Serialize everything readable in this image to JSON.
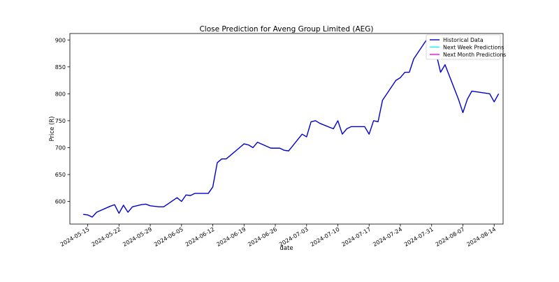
{
  "chart_data": {
    "type": "line",
    "title": "Close Prediction for Aveng Group Limited (AEG)",
    "xlabel": "date",
    "ylabel": "Price (R)",
    "x_range": [
      "2024-05-11",
      "2024-08-16"
    ],
    "ylim": [
      558,
      912
    ],
    "x_ticks": [
      "2024-05-15",
      "2024-05-22",
      "2024-05-29",
      "2024-06-05",
      "2024-06-12",
      "2024-06-19",
      "2024-06-26",
      "2024-07-03",
      "2024-07-10",
      "2024-07-17",
      "2024-07-24",
      "2024-07-31",
      "2024-08-07",
      "2024-08-14"
    ],
    "y_ticks": [
      600,
      650,
      700,
      750,
      800,
      850,
      900
    ],
    "grid": false,
    "legend_position": "top-right",
    "legend": [
      {
        "label": "Historical Data",
        "color": "#0000cd"
      },
      {
        "label": "Next Week Predictions",
        "color": "#00ffff"
      },
      {
        "label": "Next Month Predictions",
        "color": "#ff00ff"
      }
    ],
    "series": [
      {
        "name": "Historical Data",
        "color": "#0000cd",
        "points": [
          {
            "x": "2024-05-14",
            "y": 576
          },
          {
            "x": "2024-05-15",
            "y": 575
          },
          {
            "x": "2024-05-16",
            "y": 571
          },
          {
            "x": "2024-05-17",
            "y": 580
          },
          {
            "x": "2024-05-20",
            "y": 591
          },
          {
            "x": "2024-05-21",
            "y": 594
          },
          {
            "x": "2024-05-22",
            "y": 578
          },
          {
            "x": "2024-05-23",
            "y": 593
          },
          {
            "x": "2024-05-24",
            "y": 580
          },
          {
            "x": "2024-05-25",
            "y": 590
          },
          {
            "x": "2024-05-27",
            "y": 594
          },
          {
            "x": "2024-05-28",
            "y": 595
          },
          {
            "x": "2024-05-29",
            "y": 592
          },
          {
            "x": "2024-05-31",
            "y": 590
          },
          {
            "x": "2024-06-01",
            "y": 590
          },
          {
            "x": "2024-06-04",
            "y": 607
          },
          {
            "x": "2024-06-05",
            "y": 600
          },
          {
            "x": "2024-06-06",
            "y": 612
          },
          {
            "x": "2024-06-07",
            "y": 611
          },
          {
            "x": "2024-06-08",
            "y": 615
          },
          {
            "x": "2024-06-10",
            "y": 615
          },
          {
            "x": "2024-06-11",
            "y": 615
          },
          {
            "x": "2024-06-12",
            "y": 627
          },
          {
            "x": "2024-06-13",
            "y": 672
          },
          {
            "x": "2024-06-14",
            "y": 679
          },
          {
            "x": "2024-06-15",
            "y": 679
          },
          {
            "x": "2024-06-18",
            "y": 700
          },
          {
            "x": "2024-06-19",
            "y": 707
          },
          {
            "x": "2024-06-20",
            "y": 705
          },
          {
            "x": "2024-06-21",
            "y": 700
          },
          {
            "x": "2024-06-22",
            "y": 710
          },
          {
            "x": "2024-06-25",
            "y": 699
          },
          {
            "x": "2024-06-26",
            "y": 699
          },
          {
            "x": "2024-06-27",
            "y": 699
          },
          {
            "x": "2024-06-28",
            "y": 695
          },
          {
            "x": "2024-06-29",
            "y": 694
          },
          {
            "x": "2024-07-02",
            "y": 725
          },
          {
            "x": "2024-07-03",
            "y": 720
          },
          {
            "x": "2024-07-04",
            "y": 748
          },
          {
            "x": "2024-07-05",
            "y": 750
          },
          {
            "x": "2024-07-06",
            "y": 745
          },
          {
            "x": "2024-07-09",
            "y": 735
          },
          {
            "x": "2024-07-10",
            "y": 750
          },
          {
            "x": "2024-07-11",
            "y": 725
          },
          {
            "x": "2024-07-12",
            "y": 735
          },
          {
            "x": "2024-07-13",
            "y": 739
          },
          {
            "x": "2024-07-16",
            "y": 739
          },
          {
            "x": "2024-07-17",
            "y": 725
          },
          {
            "x": "2024-07-18",
            "y": 750
          },
          {
            "x": "2024-07-19",
            "y": 748
          },
          {
            "x": "2024-07-20",
            "y": 788
          },
          {
            "x": "2024-07-23",
            "y": 825
          },
          {
            "x": "2024-07-24",
            "y": 830
          },
          {
            "x": "2024-07-25",
            "y": 840
          },
          {
            "x": "2024-07-26",
            "y": 840
          },
          {
            "x": "2024-07-27",
            "y": 865
          },
          {
            "x": "2024-07-30",
            "y": 902
          },
          {
            "x": "2024-07-31",
            "y": 875
          },
          {
            "x": "2024-08-01",
            "y": 875
          },
          {
            "x": "2024-08-02",
            "y": 840
          },
          {
            "x": "2024-08-03",
            "y": 854
          },
          {
            "x": "2024-08-06",
            "y": 790
          },
          {
            "x": "2024-08-07",
            "y": 765
          },
          {
            "x": "2024-08-08",
            "y": 790
          },
          {
            "x": "2024-08-09",
            "y": 805
          },
          {
            "x": "2024-08-13",
            "y": 800
          },
          {
            "x": "2024-08-14",
            "y": 785
          },
          {
            "x": "2024-08-15",
            "y": 800
          }
        ]
      }
    ]
  }
}
